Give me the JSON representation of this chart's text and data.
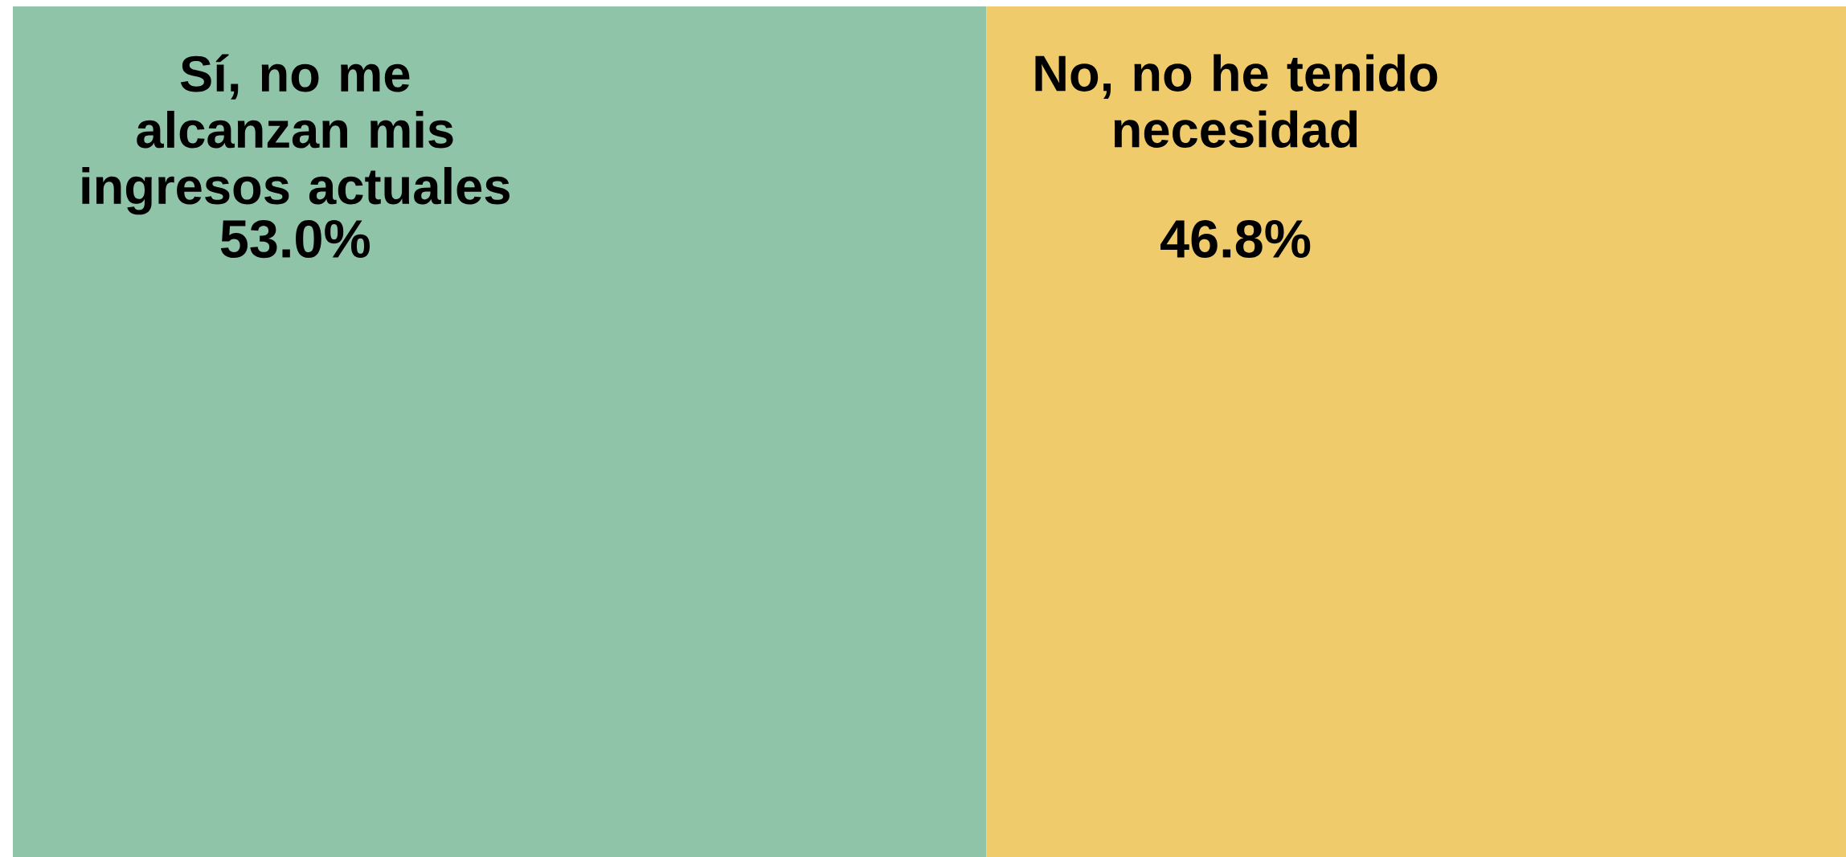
{
  "chart_data": {
    "type": "other",
    "categories": [
      "Sí, no me alcanzan mis ingresos actuales",
      "No, no he tenido necesidad"
    ],
    "values": [
      53.0,
      46.8
    ],
    "value_labels": [
      "53.0%",
      "46.8%"
    ],
    "colors": [
      "#8fc4a8",
      "#efcb6b"
    ]
  }
}
